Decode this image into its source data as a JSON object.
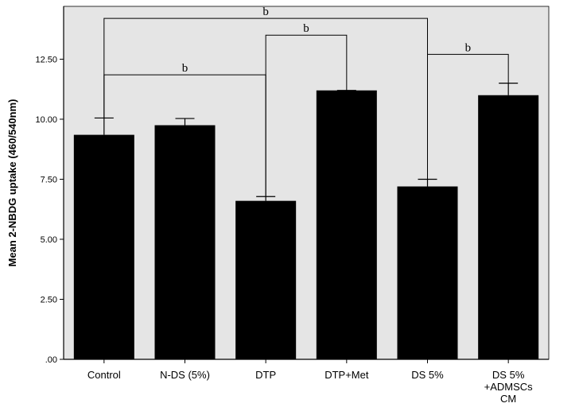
{
  "chart_data": {
    "type": "bar",
    "title": "",
    "xlabel": "",
    "ylabel": "Mean 2-NBDG uptake (460/540nm)",
    "ylim": [
      0,
      14.7
    ],
    "yticks": [
      ".00",
      "2.50",
      "5.00",
      "7.50",
      "10.00",
      "12.50"
    ],
    "ytick_values": [
      0,
      2.5,
      5,
      7.5,
      10,
      12.5
    ],
    "categories": [
      [
        "Control"
      ],
      [
        "N-DS (5%)"
      ],
      [
        "DTP"
      ],
      [
        "DTP+Met"
      ],
      [
        "DS 5%"
      ],
      [
        "DS 5%",
        "+ADMSCs",
        "CM"
      ]
    ],
    "values": [
      9.35,
      9.75,
      6.6,
      11.2,
      7.2,
      11.0
    ],
    "errors": [
      0.7,
      0.28,
      0.18,
      0.0,
      0.3,
      0.5
    ],
    "significance": [
      {
        "from": 0,
        "to": 4,
        "y": 14.2,
        "label": "b"
      },
      {
        "from": 2,
        "to": 3,
        "y": 13.5,
        "label": "b"
      },
      {
        "from": 0,
        "to": 2,
        "y": 11.85,
        "label": "b"
      },
      {
        "from": 4,
        "to": 5,
        "y": 12.7,
        "label": "b"
      }
    ],
    "colors": {
      "plot_background": "#e5e5e5",
      "bar": "#000000",
      "axis": "#000000"
    }
  }
}
